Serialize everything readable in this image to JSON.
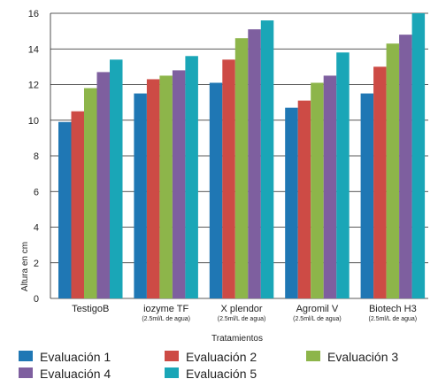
{
  "chart_data": {
    "type": "bar",
    "xlabel": "Tratamientos",
    "ylabel": "Altura en cm",
    "ylim": [
      0,
      16
    ],
    "yticks": [
      0,
      2,
      4,
      6,
      8,
      10,
      12,
      14,
      16
    ],
    "grid": "horizontal",
    "legend_position": "bottom",
    "categories": [
      {
        "name": "TestigoB",
        "sub": ""
      },
      {
        "name": "iozyme TF",
        "sub": "(2.5ml/L de agua)"
      },
      {
        "name": "X plendor",
        "sub": "(2.5ml/L de agua)"
      },
      {
        "name": "Agromil V",
        "sub": "(2.5ml/L de agua)"
      },
      {
        "name": "Biotech H3",
        "sub": "(2.5ml/L de agua)"
      }
    ],
    "series": [
      {
        "name": "Evaluación 1",
        "color": "#1f77b4",
        "values": [
          9.9,
          11.5,
          12.1,
          10.7,
          11.5
        ]
      },
      {
        "name": "Evaluación 2",
        "color": "#cd4b45",
        "values": [
          10.5,
          12.3,
          13.4,
          11.1,
          13.0
        ]
      },
      {
        "name": "Evaluación 3",
        "color": "#8db54a",
        "values": [
          11.8,
          12.5,
          14.6,
          12.1,
          14.3
        ]
      },
      {
        "name": "Evaluación 4",
        "color": "#7e5f9f",
        "values": [
          12.7,
          12.8,
          15.1,
          12.5,
          14.8
        ]
      },
      {
        "name": "Evaluación 5",
        "color": "#1aa6b7",
        "values": [
          13.4,
          13.6,
          15.6,
          13.8,
          16.0
        ]
      }
    ]
  }
}
